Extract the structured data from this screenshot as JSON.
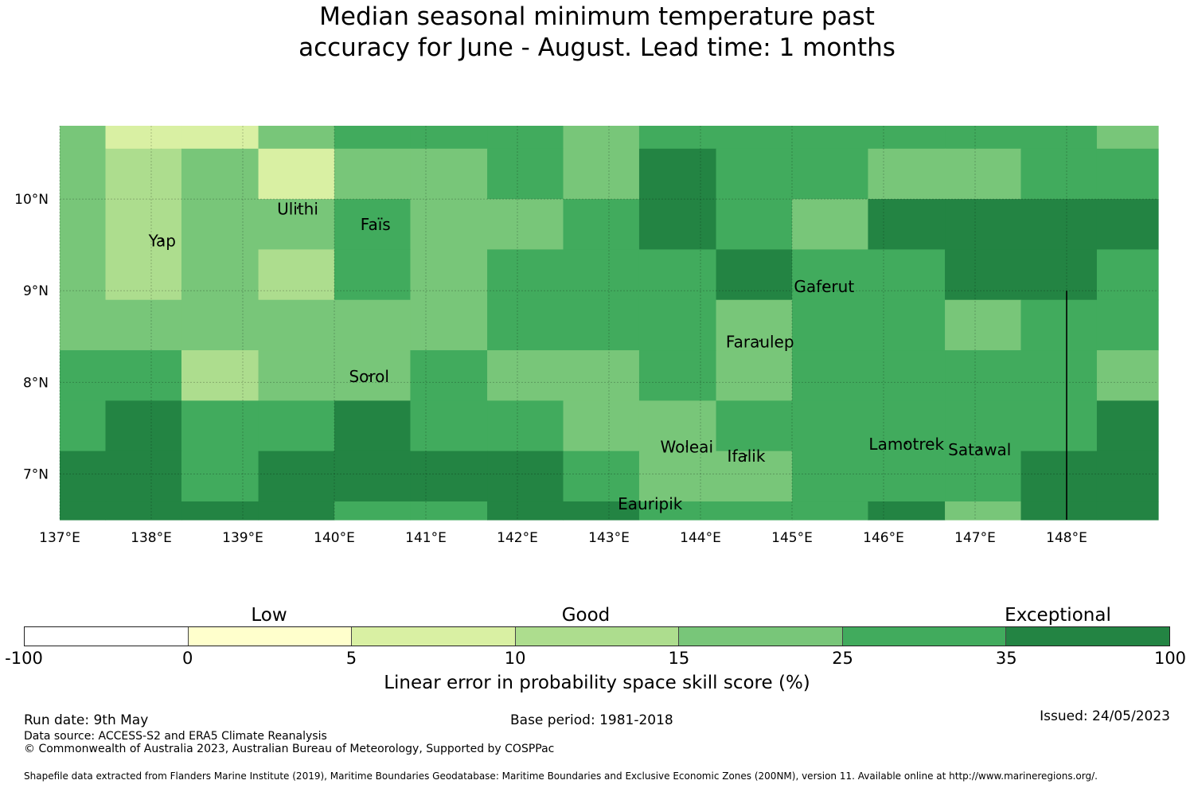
{
  "title_lines": [
    "Median seasonal minimum temperature past",
    "accuracy for June - August. Lead time: 1 months"
  ],
  "map": {
    "lon_range": [
      137.0,
      149.0
    ],
    "lat_range": [
      6.5,
      10.8
    ],
    "x_ticks": [
      {
        "lon": 137,
        "label": "137°E"
      },
      {
        "lon": 138,
        "label": "138°E"
      },
      {
        "lon": 139,
        "label": "139°E"
      },
      {
        "lon": 140,
        "label": "140°E"
      },
      {
        "lon": 141,
        "label": "141°E"
      },
      {
        "lon": 142,
        "label": "142°E"
      },
      {
        "lon": 143,
        "label": "143°E"
      },
      {
        "lon": 144,
        "label": "144°E"
      },
      {
        "lon": 145,
        "label": "145°E"
      },
      {
        "lon": 146,
        "label": "146°E"
      },
      {
        "lon": 147,
        "label": "147°E"
      },
      {
        "lon": 148,
        "label": "148°E"
      }
    ],
    "y_ticks": [
      {
        "lat": 10,
        "label": "10°N"
      },
      {
        "lat": 9,
        "label": "9°N"
      },
      {
        "lat": 8,
        "label": "8°N"
      },
      {
        "lat": 7,
        "label": "7°N"
      }
    ],
    "grid_lon_edges": [
      137.0,
      137.5,
      138.33,
      139.17,
      140.0,
      140.83,
      141.67,
      142.5,
      143.33,
      144.17,
      145.0,
      145.83,
      146.67,
      147.5,
      148.33,
      149.0
    ],
    "grid_lat_edges": [
      10.8,
      10.55,
      10.0,
      9.45,
      8.9,
      8.35,
      7.8,
      7.25,
      6.7,
      6.5
    ],
    "grid_classes": [
      [
        4,
        2,
        2,
        4,
        5,
        5,
        5,
        4,
        5,
        5,
        5,
        5,
        5,
        5,
        4
      ],
      [
        4,
        3,
        4,
        2,
        4,
        4,
        5,
        4,
        6,
        5,
        5,
        4,
        4,
        5,
        5
      ],
      [
        4,
        3,
        4,
        4,
        5,
        4,
        4,
        5,
        6,
        5,
        4,
        6,
        6,
        6,
        6
      ],
      [
        4,
        3,
        4,
        3,
        5,
        4,
        5,
        5,
        5,
        6,
        5,
        5,
        6,
        6,
        5
      ],
      [
        4,
        4,
        4,
        4,
        4,
        4,
        5,
        5,
        5,
        4,
        5,
        5,
        4,
        5,
        5
      ],
      [
        5,
        5,
        3,
        4,
        4,
        5,
        4,
        4,
        5,
        4,
        5,
        5,
        5,
        5,
        4
      ],
      [
        5,
        6,
        5,
        5,
        6,
        5,
        5,
        4,
        4,
        5,
        5,
        5,
        5,
        5,
        6
      ],
      [
        6,
        6,
        5,
        6,
        6,
        6,
        6,
        5,
        4,
        4,
        5,
        5,
        5,
        6,
        6
      ],
      [
        6,
        6,
        6,
        6,
        5,
        5,
        6,
        6,
        5,
        5,
        5,
        6,
        4,
        6,
        6
      ]
    ],
    "islands": [
      {
        "name": "Yap",
        "lon": 138.12,
        "lat": 9.5
      },
      {
        "name": "Ulithi",
        "lon": 139.6,
        "lat": 9.85
      },
      {
        "name": "Faïs",
        "lon": 140.45,
        "lat": 9.68
      },
      {
        "name": "Gaferut",
        "lon": 145.35,
        "lat": 9.0
      },
      {
        "name": "Faraulep",
        "lon": 144.65,
        "lat": 8.4
      },
      {
        "name": "Sorol",
        "lon": 140.38,
        "lat": 8.02
      },
      {
        "name": "Woleai",
        "lon": 143.85,
        "lat": 7.25
      },
      {
        "name": "Ifalik",
        "lon": 144.5,
        "lat": 7.15
      },
      {
        "name": "Lamotrek",
        "lon": 146.25,
        "lat": 7.28
      },
      {
        "name": "Satawal",
        "lon": 147.05,
        "lat": 7.22
      },
      {
        "name": "Eauripik",
        "lon": 143.45,
        "lat": 6.63
      }
    ],
    "boundary_line": {
      "lon": 148.0,
      "lat_from": 9.0,
      "lat_to": 6.5
    }
  },
  "colorbar": {
    "classes": [
      "Low",
      "Good",
      "Exceptional"
    ],
    "colors": [
      "#ffffff",
      "#ffffcc",
      "#d9f0a3",
      "#addd8e",
      "#78c679",
      "#41ab5d",
      "#238443"
    ],
    "ticks": [
      "-100",
      "0",
      "5",
      "10",
      "15",
      "25",
      "35",
      "100"
    ],
    "label": "Linear error in probability space skill score (%)"
  },
  "footer": {
    "run_date": "Run date: 9th May",
    "base_period": "Base period: 1981-2018",
    "issued": "Issued: 24/05/2023",
    "data_source": "Data source: ACCESS-S2 and ERA5 Climate Reanalysis",
    "copyright": "© Commonwealth of Australia 2023, Australian Bureau of Meteorology, Supported by COSPPac",
    "shapefile": "Shapefile data extracted from Flanders Marine Institute (2019), Maritime Boundaries Geodatabase: Maritime Boundaries and Exclusive Economic Zones (200NM), version 11. Available online at http://www.marineregions.org/."
  }
}
